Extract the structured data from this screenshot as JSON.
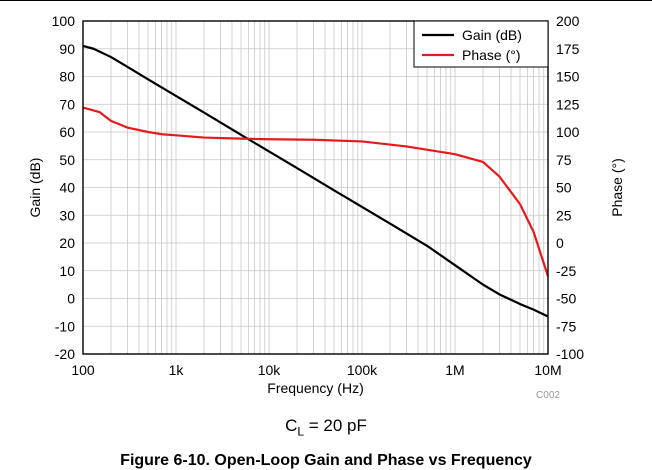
{
  "chart_data": {
    "type": "line",
    "xlabel": "Frequency (Hz)",
    "ylabel": "Gain (dB)",
    "y2label": "Phase (°)",
    "xscale": "log",
    "xlim": [
      100,
      10000000
    ],
    "ylim": [
      -20,
      100
    ],
    "y2lim": [
      -100,
      200
    ],
    "grid": true,
    "legend_position": "top-right",
    "x_ticks": [
      {
        "value": 100,
        "label": "100"
      },
      {
        "value": 1000,
        "label": "1k"
      },
      {
        "value": 10000,
        "label": "10k"
      },
      {
        "value": 100000,
        "label": "100k"
      },
      {
        "value": 1000000,
        "label": "1M"
      },
      {
        "value": 10000000,
        "label": "10M"
      }
    ],
    "y_ticks": [
      "100",
      "90",
      "80",
      "70",
      "60",
      "50",
      "40",
      "30",
      "20",
      "10",
      "0",
      "-10",
      "-20"
    ],
    "y2_ticks": [
      "200",
      "175",
      "150",
      "125",
      "100",
      "75",
      "50",
      "25",
      "0",
      "-25",
      "-50",
      "-75",
      "-100"
    ],
    "series": [
      {
        "name": "Gain (dB)",
        "axis": "left",
        "color": "#000000",
        "x": [
          100,
          130,
          200,
          300,
          500,
          1000,
          2000,
          5000,
          10000,
          20000,
          50000,
          100000,
          200000,
          500000,
          1000000,
          2000000,
          3000000,
          5000000,
          7000000,
          10000000
        ],
        "y": [
          91,
          90,
          87,
          83.5,
          79,
          73,
          67,
          59,
          53,
          47,
          39,
          33,
          27,
          19,
          12,
          5,
          1.5,
          -2,
          -4,
          -6.5
        ]
      },
      {
        "name": "Phase (°)",
        "axis": "right",
        "color": "#e8191b",
        "x": [
          100,
          150,
          200,
          300,
          500,
          700,
          1000,
          2000,
          5000,
          10000,
          30000,
          100000,
          300000,
          1000000,
          2000000,
          3000000,
          5000000,
          7000000,
          10000000
        ],
        "y": [
          122,
          118,
          110,
          104,
          100,
          98,
          97,
          95,
          94,
          93.5,
          93,
          91.5,
          87,
          80,
          73,
          60,
          35,
          10,
          -30
        ]
      }
    ],
    "watermark": "C002"
  },
  "caption": {
    "cl_main": "C",
    "cl_sub": "L",
    "cl_value": " = 20 pF",
    "figure_title": "Figure 6-10. Open-Loop Gain and Phase vs Frequency"
  }
}
